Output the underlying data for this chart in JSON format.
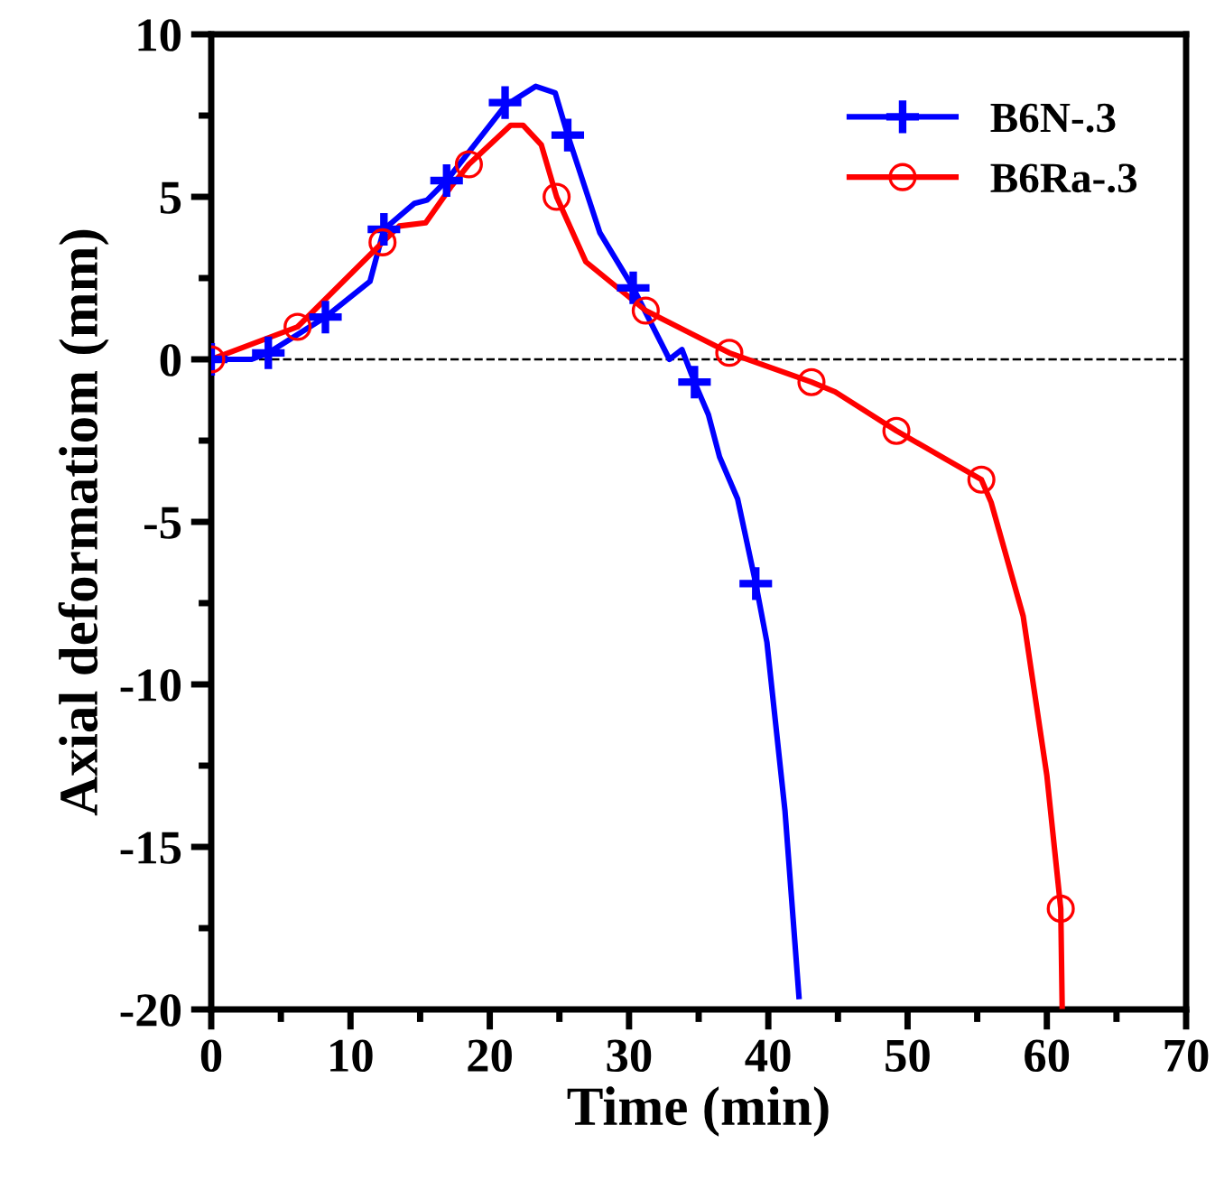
{
  "chart_data": {
    "type": "line",
    "xlabel": "Time (min)",
    "ylabel": "Axial deformatiom (mm)",
    "xlim": [
      0,
      70
    ],
    "ylim": [
      -20,
      10
    ],
    "xticks": [
      0,
      {
        "value": 5,
        "label": null
      },
      10,
      {
        "value": 15,
        "label": null
      },
      20,
      {
        "value": 25,
        "label": null
      },
      30,
      {
        "value": 35,
        "label": null
      },
      40,
      {
        "value": 45,
        "label": null
      },
      50,
      {
        "value": 55,
        "label": null
      },
      60,
      {
        "value": 65,
        "label": null
      },
      70
    ],
    "yticks": [
      -20,
      {
        "value": -17.5,
        "label": null
      },
      -15,
      {
        "value": -12.5,
        "label": null
      },
      -10,
      {
        "value": -7.5,
        "label": null
      },
      -5,
      {
        "value": -2.5,
        "label": null
      },
      0,
      {
        "value": 2.5,
        "label": null
      },
      5,
      {
        "value": 7.5,
        "label": null
      },
      10
    ],
    "grid": false,
    "legend": "top right",
    "ref_lines": [
      {
        "axis": "y",
        "value": 0,
        "color": "#000000",
        "line_style": "dashed"
      }
    ],
    "series": [
      {
        "name": "B6N-.3",
        "color": "#0000ff",
        "x": [
          0,
          2.9,
          4.1,
          8.2,
          11.4,
          12.4,
          14.6,
          15.5,
          16.9,
          21.1,
          23.3,
          24.7,
          25.6,
          27.9,
          30.3,
          32.9,
          33.8,
          34.7,
          35.7,
          36.5,
          37.8,
          39.1,
          39.9,
          41.2,
          42.2
        ],
        "values": [
          0,
          0,
          0.2,
          1.3,
          2.4,
          4.0,
          4.8,
          4.9,
          5.5,
          7.8,
          8.4,
          8.2,
          6.9,
          3.9,
          2.2,
          0,
          0.3,
          -0.7,
          -1.7,
          -3.0,
          -4.3,
          -6.9,
          -8.7,
          -13.9,
          -19.6
        ]
      },
      {
        "name": "B6Ra-.3",
        "color": "#ff0000",
        "x": [
          0,
          6.2,
          12.3,
          13.5,
          15.4,
          17.2,
          18.5,
          21.5,
          22.4,
          23.7,
          24.8,
          26.9,
          31.2,
          37.2,
          43.1,
          44.8,
          49.2,
          55.3,
          56.0,
          58.3,
          60.0,
          61.0,
          61.1
        ],
        "values": [
          0,
          1.0,
          3.6,
          4.1,
          4.2,
          5.3,
          6.0,
          7.2,
          7.2,
          6.6,
          5.0,
          3.0,
          1.5,
          0.2,
          -0.7,
          -1.0,
          -2.2,
          -3.7,
          -4.4,
          -7.9,
          -12.8,
          -16.9,
          -19.9
        ]
      },
      {
        "color": "#0000ff",
        "type": "scatter",
        "marker": "cross",
        "x": [
          0,
          4.1,
          8.2,
          12.4,
          16.9,
          21.1,
          25.6,
          30.3,
          34.7,
          39.1
        ],
        "values": [
          0,
          0.2,
          1.3,
          4.0,
          5.5,
          7.9,
          6.9,
          2.2,
          -0.7,
          -6.9
        ]
      },
      {
        "color": "#ff0000",
        "type": "scatter",
        "marker": "circle",
        "x": [
          0,
          6.2,
          12.3,
          18.5,
          24.8,
          31.2,
          37.2,
          43.1,
          49.2,
          55.3,
          61.0
        ],
        "values": [
          0,
          1.0,
          3.6,
          6.0,
          5.0,
          1.5,
          0.2,
          -0.7,
          -2.2,
          -3.7,
          -16.9
        ]
      }
    ]
  }
}
